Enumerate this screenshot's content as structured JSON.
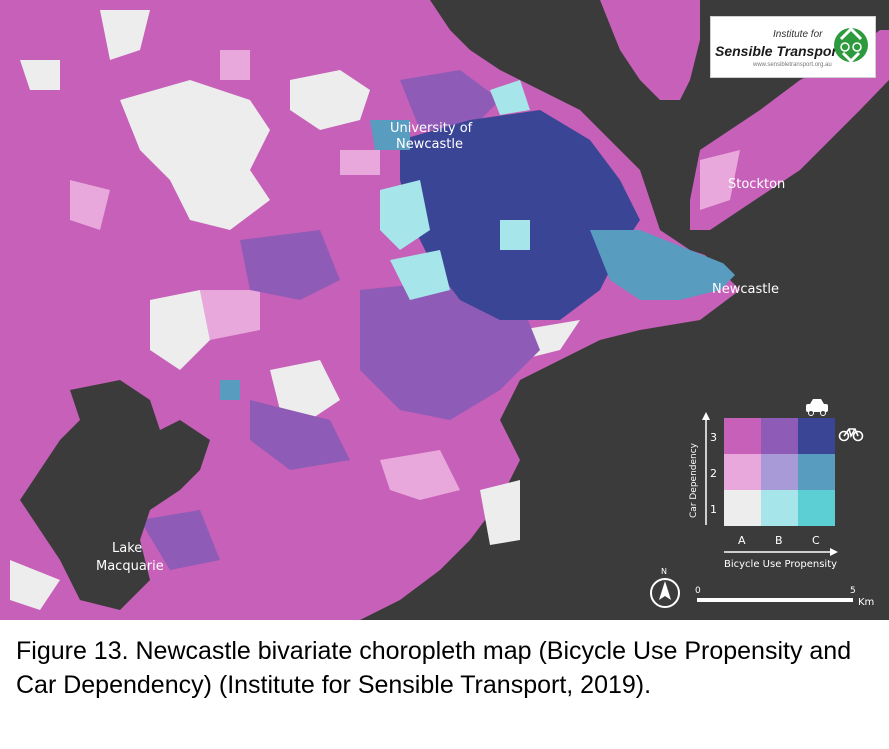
{
  "logo": {
    "line1": "Institute for",
    "line2": "Sensible Transport",
    "url": "www.sensibletransport.org.au",
    "icon": "recycle-bike-icon"
  },
  "labels": {
    "university": [
      "University of",
      "Newcastle"
    ],
    "stockton": "Stockton",
    "newcastle": "Newcastle",
    "lake": [
      "Lake",
      "Macquarie"
    ]
  },
  "legend": {
    "y_title": "Car Dependency",
    "x_title": "Bicycle Use Propensity",
    "y_levels": [
      "1",
      "2",
      "3"
    ],
    "x_levels": [
      "A",
      "B",
      "C"
    ],
    "colors": {
      "1A": "#ededed",
      "1B": "#a6e6ea",
      "1C": "#5bcfd3",
      "2A": "#e8a8dc",
      "2B": "#a79ad7",
      "2C": "#589cbf",
      "3A": "#c760b8",
      "3B": "#8e5bb6",
      "3C": "#3a4596"
    },
    "car_icon": "car-icon",
    "bike_icon": "bicycle-icon"
  },
  "scale": {
    "start": "0",
    "end": "5",
    "unit": "Km"
  },
  "north": {
    "letter": "N",
    "icon": "north-arrow-icon"
  },
  "caption": "Figure 13. Newcastle bivariate choropleth map (Bicycle Use Propensity and Car Dependency) (Institute for Sensible Transport, 2019).",
  "colors": {
    "background": "#3b3b3b",
    "water": "#3b3b3b",
    "category_3a": "#c760b8",
    "category_3b": "#8e5bb6",
    "category_3c": "#3a4596",
    "category_2a": "#e8a8dc",
    "category_2c": "#589cbf",
    "category_1a": "#ededed",
    "category_1b": "#a6e6ea"
  }
}
